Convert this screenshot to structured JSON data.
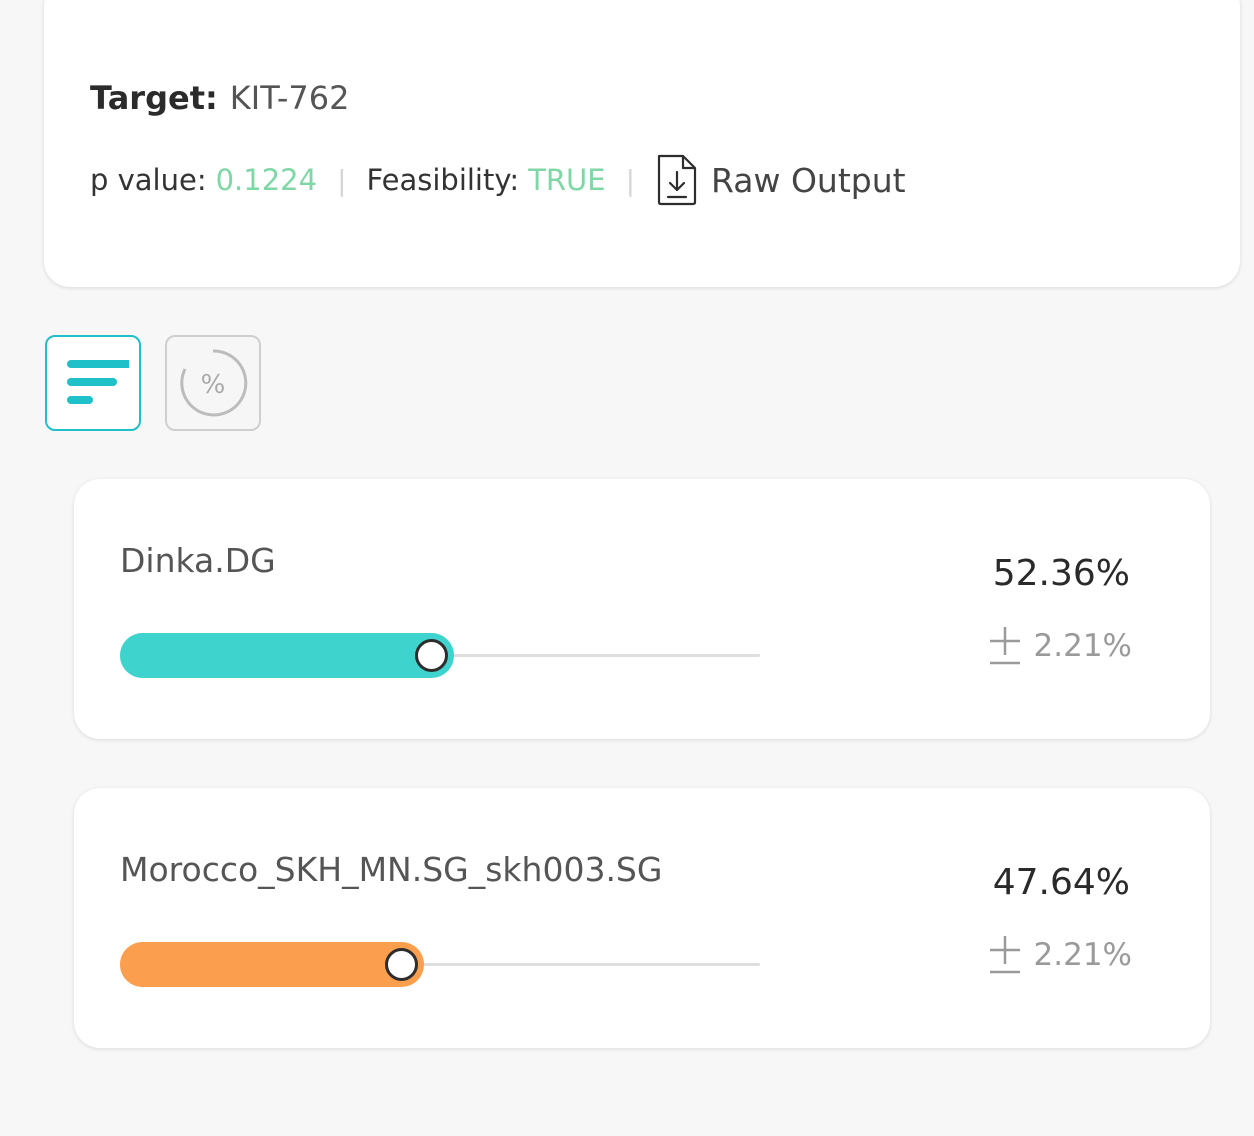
{
  "summary": {
    "target_label": "Target:",
    "target_value": "KIT-762",
    "p_value_label": "p value:",
    "p_value": "0.1224",
    "feasibility_label": "Feasibility:",
    "feasibility_value": "TRUE",
    "separator": "|",
    "raw_output_label": "Raw Output",
    "raw_output_icon": "download-file-icon",
    "value_color": "#7fd7a6"
  },
  "view_toggle": {
    "active": "bars",
    "bars_icon": "bar-chart-icon",
    "percent_icon": "percent-icon",
    "percent_glyph": "%",
    "active_color": "#20c0c8"
  },
  "results": [
    {
      "name": "Dinka.DG",
      "percent": "52.36%",
      "pm": "±",
      "error": "2.21%",
      "fraction": 0.5236,
      "color": "#3fd3cd"
    },
    {
      "name": "Morocco_SKH_MN.SG_skh003.SG",
      "percent": "47.64%",
      "pm": "±",
      "error": "2.21%",
      "fraction": 0.4764,
      "color": "#fb9f4e"
    }
  ]
}
